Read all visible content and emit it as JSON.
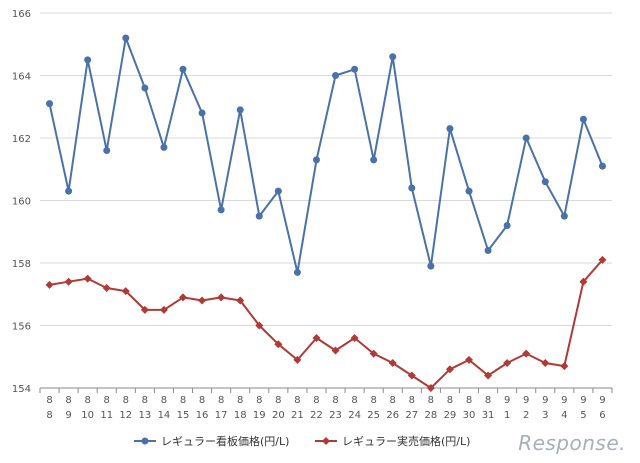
{
  "chart_data": {
    "type": "line",
    "title": "",
    "xlabel": "",
    "ylabel": "",
    "ylim": [
      154,
      166
    ],
    "y_ticks": [
      154,
      156,
      158,
      160,
      162,
      164,
      166
    ],
    "grid": "horizontal",
    "legend_position": "bottom",
    "categories": [
      [
        "8",
        "8"
      ],
      [
        "8",
        "9"
      ],
      [
        "8",
        "10"
      ],
      [
        "8",
        "11"
      ],
      [
        "8",
        "12"
      ],
      [
        "8",
        "13"
      ],
      [
        "8",
        "14"
      ],
      [
        "8",
        "15"
      ],
      [
        "8",
        "16"
      ],
      [
        "8",
        "17"
      ],
      [
        "8",
        "18"
      ],
      [
        "8",
        "19"
      ],
      [
        "8",
        "20"
      ],
      [
        "8",
        "21"
      ],
      [
        "8",
        "22"
      ],
      [
        "8",
        "23"
      ],
      [
        "8",
        "24"
      ],
      [
        "8",
        "25"
      ],
      [
        "8",
        "26"
      ],
      [
        "8",
        "27"
      ],
      [
        "8",
        "28"
      ],
      [
        "8",
        "29"
      ],
      [
        "8",
        "30"
      ],
      [
        "8",
        "31"
      ],
      [
        "9",
        "1"
      ],
      [
        "9",
        "2"
      ],
      [
        "9",
        "3"
      ],
      [
        "9",
        "4"
      ],
      [
        "9",
        "5"
      ],
      [
        "9",
        "6"
      ]
    ],
    "series": [
      {
        "name": "レギュラー看板価格(円/L)",
        "color": "#4a72a8",
        "marker": "circle",
        "values": [
          163.1,
          160.3,
          164.5,
          161.6,
          165.2,
          163.6,
          161.7,
          164.2,
          162.8,
          159.7,
          162.9,
          159.5,
          160.3,
          157.7,
          161.3,
          164.0,
          164.2,
          161.3,
          164.6,
          160.4,
          157.9,
          162.3,
          160.3,
          158.4,
          159.2,
          162.0,
          160.6,
          159.5,
          162.6,
          161.1
        ]
      },
      {
        "name": "レギュラー実売価格(円/L)",
        "color": "#b03a36",
        "marker": "diamond",
        "values": [
          157.3,
          157.4,
          157.5,
          157.2,
          157.1,
          156.5,
          156.5,
          156.9,
          156.8,
          156.9,
          156.8,
          156.0,
          155.4,
          154.9,
          155.6,
          155.2,
          155.6,
          155.1,
          154.8,
          154.4,
          154.0,
          154.6,
          154.9,
          154.4,
          154.8,
          155.1,
          154.8,
          154.7,
          157.4,
          158.1
        ]
      }
    ]
  },
  "watermark": "Response."
}
